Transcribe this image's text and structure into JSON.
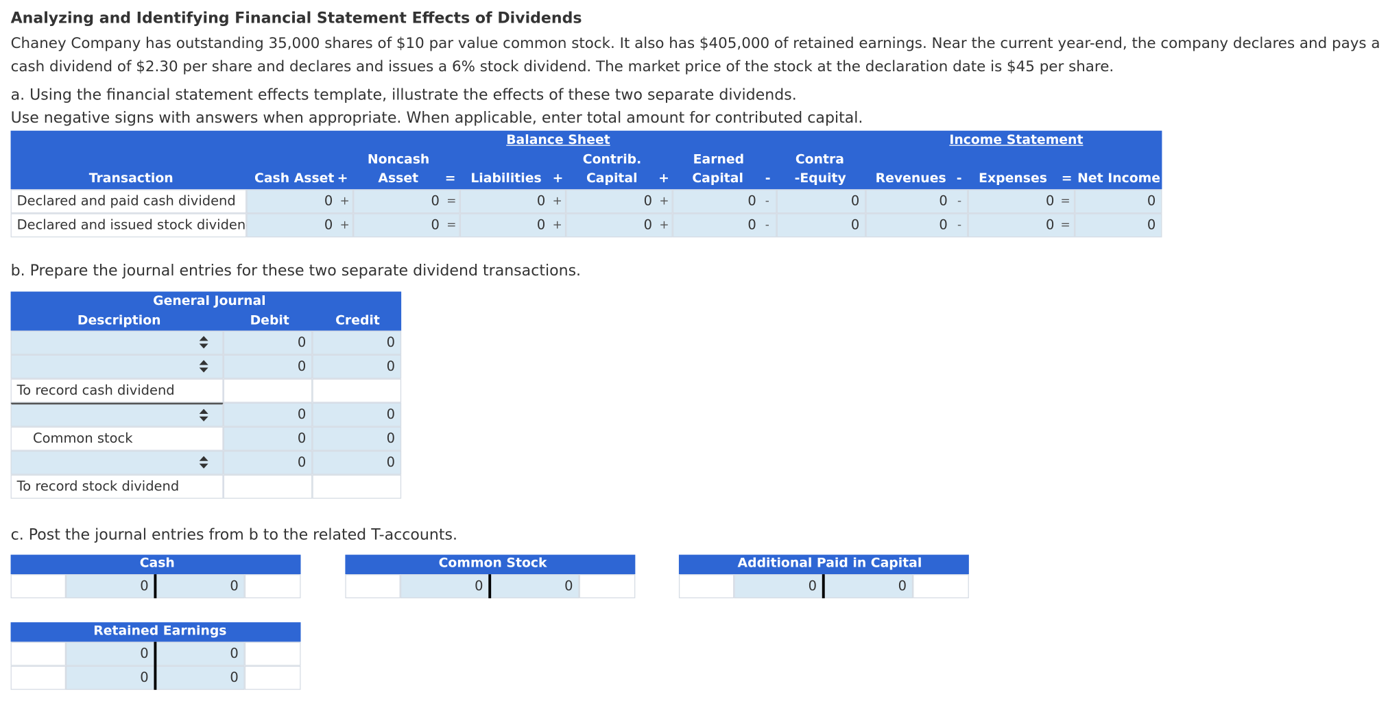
{
  "title": "Analyzing and Identifying Financial Statement Effects of Dividends",
  "intro": "Chaney Company has outstanding 35,000 shares of $10 par value common stock. It also has $405,000 of retained earnings. Near the current year-end, the company declares and pays a cash dividend of $2.30 per share and declares and issues a 6% stock dividend. The market price of the stock at the declaration date is $45 per share.",
  "part_a": {
    "prompt": "a. Using the financial statement effects template, illustrate the effects of these two separate dividends.",
    "instructions": "Use negative signs with answers when appropriate. When applicable, enter total amount for contributed capital.",
    "balance_sheet_label": "Balance Sheet",
    "income_statement_label": "Income Statement",
    "headers": {
      "transaction": "Transaction",
      "cash_asset": "Cash Asset",
      "noncash_1": "Noncash",
      "noncash_2": "Asset",
      "liabilities": "Liabilities",
      "contrib_1": "Contrib.",
      "contrib_2": "Capital",
      "earned_1": "Earned",
      "earned_2": "Capital",
      "contra_1": "Contra",
      "contra_2": "-Equity",
      "revenues": "Revenues",
      "expenses": "Expenses",
      "net_income": "Net Income"
    },
    "operators": {
      "plus": "+",
      "equals": "=",
      "minus": "-"
    },
    "rows": [
      {
        "label": "Declared and paid cash dividend",
        "cash": "0",
        "noncash": "0",
        "liabilities": "0",
        "contrib": "0",
        "earned": "0",
        "contra": "0",
        "revenues": "0",
        "expenses": "0",
        "net_income": "0"
      },
      {
        "label": "Declared and issued stock dividend",
        "cash": "0",
        "noncash": "0",
        "liabilities": "0",
        "contrib": "0",
        "earned": "0",
        "contra": "0",
        "revenues": "0",
        "expenses": "0",
        "net_income": "0"
      }
    ]
  },
  "part_b": {
    "prompt": "b. Prepare the journal entries for these two separate dividend transactions.",
    "journal_title": "General Journal",
    "headers": {
      "description": "Description",
      "debit": "Debit",
      "credit": "Credit"
    },
    "rows": [
      {
        "desc": "",
        "debit": "0",
        "credit": "0"
      },
      {
        "desc": "",
        "debit": "0",
        "credit": "0"
      },
      {
        "desc": "To record cash dividend",
        "debit": "",
        "credit": ""
      },
      {
        "desc": "",
        "debit": "0",
        "credit": "0"
      },
      {
        "desc": "Common stock",
        "debit": "0",
        "credit": "0"
      },
      {
        "desc": "",
        "debit": "0",
        "credit": "0"
      },
      {
        "desc": "To record stock dividend",
        "debit": "",
        "credit": ""
      }
    ]
  },
  "part_c": {
    "prompt": "c. Post the journal entries from b to the related T-accounts.",
    "accounts": {
      "cash": {
        "name": "Cash",
        "rows": [
          [
            "0",
            "0"
          ]
        ]
      },
      "common_stock": {
        "name": "Common Stock",
        "rows": [
          [
            "0",
            "0"
          ]
        ]
      },
      "apic": {
        "name": "Additional Paid in Capital",
        "rows": [
          [
            "0",
            "0"
          ]
        ]
      },
      "retained_earnings": {
        "name": "Retained Earnings",
        "rows": [
          [
            "0",
            "0"
          ],
          [
            "0",
            "0"
          ]
        ]
      }
    }
  },
  "colors": {
    "header_blue": "#2e66d4",
    "cell_blue": "#d8e9f4"
  }
}
